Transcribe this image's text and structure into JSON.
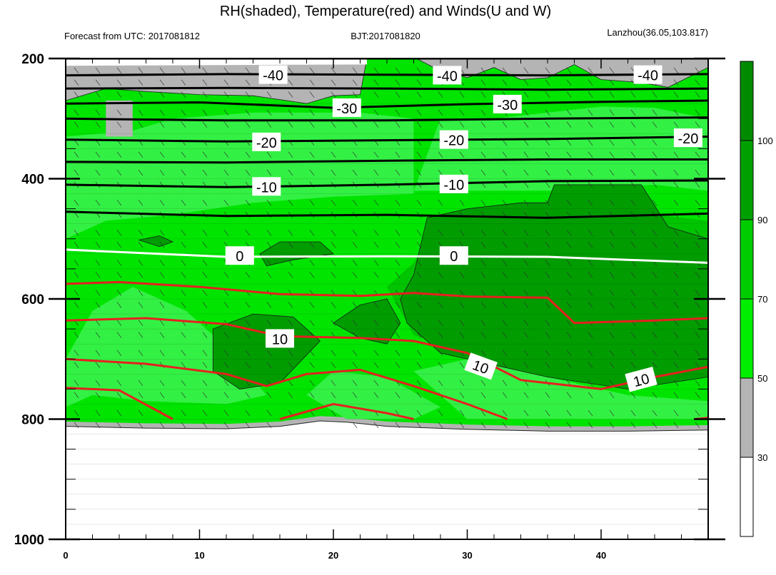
{
  "chart_data": {
    "type": "contour",
    "title": "RH(shaded), Temperature(red) and Winds(U and W)",
    "subtitle_left": "Forecast from UTC: 2017081812",
    "subtitle_center": "BJT:2017081820",
    "subtitle_right": "Lanzhou(36.05,103.817)",
    "xlim": [
      0,
      48
    ],
    "ylim": [
      1000,
      200
    ],
    "x_ticks": [
      "0",
      "10",
      "20",
      "30",
      "40"
    ],
    "y_ticks": [
      "200",
      "400",
      "600",
      "800",
      "1000"
    ],
    "colorbar": {
      "levels": [
        "30",
        "50",
        "70",
        "90",
        "100"
      ],
      "colors": [
        "#ffffff",
        "#b4b4b4",
        "#00ee00",
        "#00cd00",
        "#00a000",
        "#008b00"
      ]
    },
    "shading_colors": {
      "gray": "#b4b4b4",
      "light_green": "#33f044",
      "green": "#00e400",
      "medium_green": "#00c400",
      "dark_green": "#009c00"
    },
    "surface_pressure": [
      [
        0,
        812
      ],
      [
        6,
        815
      ],
      [
        12,
        816
      ],
      [
        16,
        812
      ],
      [
        19,
        803
      ],
      [
        21,
        805
      ],
      [
        24,
        812
      ],
      [
        30,
        817
      ],
      [
        36,
        820
      ],
      [
        42,
        820
      ],
      [
        48,
        818
      ]
    ],
    "gray_top": [
      [
        0,
        270
      ],
      [
        3,
        250
      ],
      [
        6,
        255
      ],
      [
        10,
        260
      ],
      [
        14,
        262
      ],
      [
        18,
        275
      ],
      [
        20,
        262
      ],
      [
        22,
        260
      ],
      [
        22.5,
        200
      ],
      [
        26.2,
        200
      ],
      [
        27.5,
        215
      ],
      [
        30,
        232
      ],
      [
        32,
        215
      ],
      [
        34,
        235
      ],
      [
        36,
        232
      ],
      [
        38,
        210
      ],
      [
        40,
        235
      ],
      [
        43,
        240
      ],
      [
        45,
        248
      ],
      [
        48,
        215
      ]
    ],
    "isotherms_black": [
      {
        "label": "-40",
        "points": [
          [
            0,
            200
          ],
          [
            48,
            200
          ]
        ]
      },
      {
        "label": "-40",
        "points": [
          [
            0,
            228
          ],
          [
            12,
            226
          ],
          [
            24,
            227
          ],
          [
            36,
            228
          ],
          [
            48,
            226
          ]
        ]
      },
      {
        "label": "",
        "points": [
          [
            0,
            250
          ],
          [
            12,
            249
          ],
          [
            24,
            250
          ],
          [
            36,
            252
          ],
          [
            48,
            250
          ]
        ]
      },
      {
        "label": "-30",
        "points": [
          [
            0,
            275
          ],
          [
            10,
            273
          ],
          [
            20,
            282
          ],
          [
            30,
            276
          ],
          [
            40,
            272
          ],
          [
            48,
            270
          ]
        ]
      },
      {
        "label": "",
        "points": [
          [
            0,
            300
          ],
          [
            12,
            303
          ],
          [
            24,
            303
          ],
          [
            36,
            300
          ],
          [
            48,
            298
          ]
        ]
      },
      {
        "label": "-20",
        "points": [
          [
            0,
            335
          ],
          [
            12,
            338
          ],
          [
            24,
            336
          ],
          [
            36,
            334
          ],
          [
            48,
            330
          ]
        ]
      },
      {
        "label": "",
        "points": [
          [
            0,
            372
          ],
          [
            12,
            373
          ],
          [
            24,
            370
          ],
          [
            36,
            368
          ],
          [
            48,
            368
          ]
        ]
      },
      {
        "label": "-10",
        "points": [
          [
            0,
            410
          ],
          [
            12,
            414
          ],
          [
            24,
            410
          ],
          [
            36,
            404
          ],
          [
            48,
            403
          ]
        ]
      },
      {
        "label": "",
        "points": [
          [
            0,
            455
          ],
          [
            12,
            462
          ],
          [
            24,
            460
          ],
          [
            36,
            465
          ],
          [
            48,
            458
          ]
        ]
      }
    ],
    "isotherm_white": {
      "label": "0",
      "points": [
        [
          0,
          518
        ],
        [
          12,
          530
        ],
        [
          24,
          529
        ],
        [
          36,
          530
        ],
        [
          42,
          535
        ],
        [
          48,
          540
        ]
      ]
    },
    "isotherms_red": [
      {
        "label": "",
        "points": [
          [
            0,
            575
          ],
          [
            4,
            572
          ],
          [
            10,
            580
          ],
          [
            16,
            592
          ],
          [
            22,
            595
          ],
          [
            26,
            590
          ],
          [
            30,
            596
          ],
          [
            36,
            598
          ],
          [
            38,
            640
          ],
          [
            44,
            636
          ],
          [
            48,
            632
          ]
        ]
      },
      {
        "label": "10",
        "points": [
          [
            0,
            636
          ],
          [
            6,
            632
          ],
          [
            12,
            642
          ],
          [
            16,
            662
          ],
          [
            22,
            665
          ],
          [
            26,
            670
          ],
          [
            30,
            690
          ],
          [
            34,
            735
          ],
          [
            40,
            750
          ],
          [
            44,
            730
          ],
          [
            48,
            713
          ]
        ]
      },
      {
        "label": "",
        "points": [
          [
            0,
            700
          ],
          [
            6,
            708
          ],
          [
            12,
            725
          ],
          [
            15,
            745
          ],
          [
            18,
            725
          ],
          [
            22,
            718
          ],
          [
            26,
            745
          ],
          [
            30,
            775
          ],
          [
            33,
            800
          ]
        ]
      },
      {
        "label": "",
        "points": [
          [
            0,
            748
          ],
          [
            4,
            752
          ],
          [
            8,
            800
          ]
        ]
      },
      {
        "label": "",
        "points": [
          [
            16,
            800
          ],
          [
            20,
            775
          ],
          [
            24,
            790
          ],
          [
            26,
            800
          ]
        ]
      },
      {
        "label": "",
        "points": [
          [
            47,
            800
          ],
          [
            48,
            798
          ]
        ]
      }
    ],
    "wind_barb_rows": [
      220,
      240,
      260,
      290,
      310,
      340,
      360,
      390,
      410,
      440,
      460,
      490,
      510,
      540,
      560,
      590,
      610,
      640,
      660,
      690,
      710,
      740,
      760,
      790,
      810
    ]
  }
}
